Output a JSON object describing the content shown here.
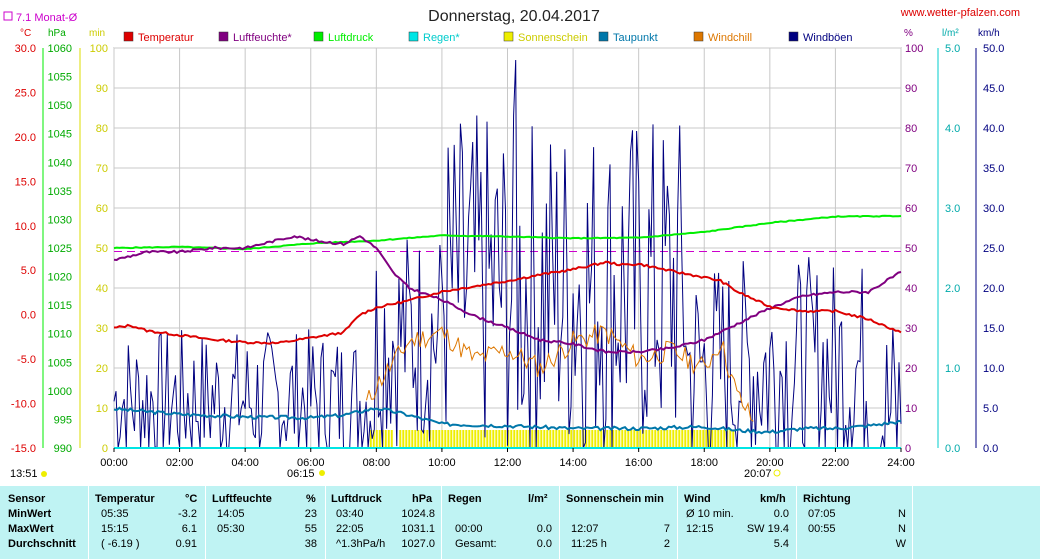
{
  "title": "Donnerstag, 20.04.2017",
  "site": "www.wetter-pfalzen.com",
  "monthly_avg_label": "7.1 Monat-Ø",
  "units": {
    "temp": "°C",
    "hpa": "hPa",
    "min": "min",
    "pct": "%",
    "lm2": "l/m²",
    "kmh": "km/h"
  },
  "colors": {
    "temp": "#dd0000",
    "hum": "#800080",
    "press": "#00ee00",
    "rain": "#00e5e5",
    "sun": "#eeee00",
    "dew": "#0077aa",
    "chill": "#dd7700",
    "gust": "#000080",
    "avg": "#cc00cc"
  },
  "bottom": {
    "sunrise": "06:15",
    "sunset": "20:07",
    "now": "13:51"
  },
  "chart_data": {
    "type": "line",
    "title": "Donnerstag, 20.04.2017",
    "x_ticks": [
      "00:00",
      "02:00",
      "04:00",
      "06:00",
      "08:00",
      "10:00",
      "12:00",
      "14:00",
      "16:00",
      "18:00",
      "20:00",
      "22:00",
      "24:00"
    ],
    "axes": {
      "temp": {
        "range": [
          -15,
          30
        ],
        "ticks": [
          "30.0",
          "25.0",
          "20.0",
          "15.0",
          "10.0",
          "5.0",
          "0.0",
          "-5.0",
          "-10.0",
          "-15.0"
        ]
      },
      "press": {
        "range": [
          990,
          1060
        ],
        "ticks": [
          "1060",
          "1055",
          "1050",
          "1045",
          "1040",
          "1035",
          "1030",
          "1025",
          "1020",
          "1015",
          "1010",
          "1005",
          "1000",
          "995",
          "990"
        ]
      },
      "sun": {
        "range": [
          0,
          100
        ],
        "ticks": [
          "100",
          "90",
          "80",
          "70",
          "60",
          "50",
          "40",
          "30",
          "20",
          "10",
          "0"
        ]
      },
      "hum_left": {
        "range": [
          0,
          100
        ],
        "ticks": [
          "100",
          "90",
          "80",
          "70",
          "60",
          "50",
          "40",
          "30",
          "20",
          "10",
          "0"
        ]
      },
      "rain": {
        "range": [
          0,
          5
        ],
        "ticks": [
          "5.0",
          "4.0",
          "3.0",
          "2.0",
          "1.0",
          "0.0"
        ]
      },
      "wind": {
        "range": [
          0,
          50
        ],
        "ticks": [
          "50.0",
          "45.0",
          "40.0",
          "35.0",
          "30.0",
          "25.0",
          "20.0",
          "15.0",
          "10.0",
          "5.0",
          "0.0"
        ]
      }
    },
    "monthly_avg_temp": 7.1,
    "legend": [
      {
        "name": "Temperatur",
        "key": "temp"
      },
      {
        "name": "Luftfeuchte*",
        "key": "hum"
      },
      {
        "name": "Luftdruck",
        "key": "press"
      },
      {
        "name": "Regen*",
        "key": "rain"
      },
      {
        "name": "Sonnenschein",
        "key": "sun"
      },
      {
        "name": "Taupunkt",
        "key": "dew"
      },
      {
        "name": "Windchill",
        "key": "chill"
      },
      {
        "name": "Windböen",
        "key": "gust"
      }
    ],
    "series": {
      "temp": [
        [
          0,
          -1.5
        ],
        [
          0.5,
          -1.2
        ],
        [
          1,
          -1.8
        ],
        [
          2,
          -2.3
        ],
        [
          3,
          -2.8
        ],
        [
          4,
          -3.1
        ],
        [
          5,
          -3.2
        ],
        [
          6,
          -2.6
        ],
        [
          7,
          -2.0
        ],
        [
          7.5,
          0
        ],
        [
          8,
          0.8
        ],
        [
          9,
          1.6
        ],
        [
          10,
          2.6
        ],
        [
          11,
          3.2
        ],
        [
          12,
          3.8
        ],
        [
          13,
          4.5
        ],
        [
          14,
          5.1
        ],
        [
          15,
          5.9
        ],
        [
          15.5,
          5.6
        ],
        [
          16,
          5.7
        ],
        [
          17,
          4.9
        ],
        [
          18,
          4.2
        ],
        [
          18.5,
          3.8
        ],
        [
          19,
          2.6
        ],
        [
          20,
          0.9
        ],
        [
          21,
          0.4
        ],
        [
          22,
          0.4
        ],
        [
          23,
          -0.5
        ],
        [
          24,
          -2.0
        ]
      ],
      "hum": [
        [
          0,
          47
        ],
        [
          1,
          49
        ],
        [
          2,
          49
        ],
        [
          3,
          50
        ],
        [
          4,
          50
        ],
        [
          5,
          52
        ],
        [
          5.5,
          53
        ],
        [
          6,
          52
        ],
        [
          7,
          51
        ],
        [
          7.5,
          53
        ],
        [
          8,
          50
        ],
        [
          8.5,
          44
        ],
        [
          9,
          40
        ],
        [
          10,
          37
        ],
        [
          11,
          33
        ],
        [
          12,
          30
        ],
        [
          13,
          27
        ],
        [
          14,
          26
        ],
        [
          15,
          24
        ],
        [
          16,
          24
        ],
        [
          17,
          25
        ],
        [
          18,
          27
        ],
        [
          18.5,
          29
        ],
        [
          19,
          31
        ],
        [
          20,
          35
        ],
        [
          21,
          38
        ],
        [
          22,
          39
        ],
        [
          23,
          39
        ],
        [
          24,
          44
        ]
      ],
      "press": [
        [
          0,
          1025.0
        ],
        [
          2,
          1025.2
        ],
        [
          4,
          1024.8
        ],
        [
          6,
          1025.8
        ],
        [
          8,
          1026.3
        ],
        [
          10,
          1027.2
        ],
        [
          12,
          1027.0
        ],
        [
          14,
          1026.7
        ],
        [
          16,
          1026.8
        ],
        [
          18,
          1027.8
        ],
        [
          20,
          1029.4
        ],
        [
          22,
          1030.5
        ],
        [
          24,
          1030.6
        ]
      ],
      "dew": [
        [
          0,
          -10.6
        ],
        [
          2,
          -11.2
        ],
        [
          4,
          -11.5
        ],
        [
          6,
          -11.6
        ],
        [
          7,
          -11.3
        ],
        [
          8,
          -10.5
        ],
        [
          9,
          -11.3
        ],
        [
          10,
          -12.3
        ],
        [
          12,
          -12.5
        ],
        [
          14,
          -12.8
        ],
        [
          16,
          -12.8
        ],
        [
          18,
          -12.6
        ],
        [
          19,
          -13.0
        ],
        [
          20,
          -13.2
        ],
        [
          21,
          -12.8
        ],
        [
          22,
          -12.8
        ],
        [
          23,
          -12.5
        ],
        [
          24,
          -12.0
        ]
      ],
      "chill": [
        [
          7.7,
          -10
        ],
        [
          8,
          -8
        ],
        [
          9,
          -3
        ],
        [
          10,
          -2
        ],
        [
          11,
          -5
        ],
        [
          12,
          -4
        ],
        [
          13,
          -6
        ],
        [
          14,
          -3
        ],
        [
          15,
          -2
        ],
        [
          16,
          -5
        ],
        [
          17,
          -4
        ],
        [
          18,
          -6
        ],
        [
          18.5,
          -3
        ],
        [
          19,
          -9
        ],
        [
          19.5,
          -12
        ]
      ],
      "gust_max": 48.5,
      "sun_minutes": [
        [
          7.8,
          8.5,
          5
        ],
        [
          8.7,
          18.9,
          5
        ]
      ]
    }
  },
  "stats": {
    "headers": {
      "sensor": "Sensor",
      "temp": "Temperatur",
      "temp_u": "°C",
      "hum": "Luftfeuchte",
      "hum_u": "%",
      "press": "Luftdruck",
      "press_u": "hPa",
      "rain": "Regen",
      "rain_u": "l/m²",
      "sun": "Sonnenschein min",
      "wind": "Wind",
      "wind_u": "km/h",
      "dir": "Richtung"
    },
    "rows": [
      {
        "label": "MinWert",
        "t_time": "05:35",
        "t_val": "-3.2",
        "h_time": "14:05",
        "h_val": "23",
        "p_time": "03:40",
        "p_val": "1024.8",
        "r_time": "",
        "r_val": "",
        "s_time": "",
        "s_val": "",
        "w_time": "Ø 10 min.",
        "w_val": "0.0",
        "d_time": "07:05",
        "d_val": "N"
      },
      {
        "label": "MaxWert",
        "t_time": "15:15",
        "t_val": "6.1",
        "h_time": "05:30",
        "h_val": "55",
        "p_time": "22:05",
        "p_val": "1031.1",
        "r_time": "00:00",
        "r_val": "0.0",
        "s_time": "12:07",
        "s_val": "7",
        "w_time": "12:15",
        "w_val": "SW 19.4",
        "d_time": "00:55",
        "d_val": "N"
      },
      {
        "label": "Durchschnitt",
        "t_time": "( -6.19 )",
        "t_val": "0.91",
        "h_time": "",
        "h_val": "38",
        "p_time": "^1.3hPa/h",
        "p_val": "1027.0",
        "r_time": "Gesamt:",
        "r_val": "0.0",
        "s_time": "11:25 h",
        "s_val": "2",
        "w_time": "",
        "w_val": "5.4",
        "d_time": "",
        "d_val": "W"
      }
    ]
  }
}
